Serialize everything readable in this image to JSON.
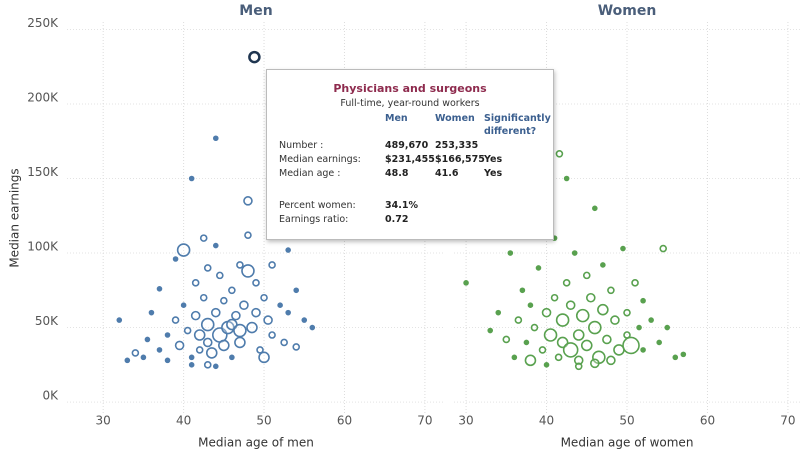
{
  "chart_data": [
    {
      "type": "scatter",
      "title": "Men",
      "x_label": "Median age of men",
      "y_label": "Median earnings",
      "xlim": [
        25.5,
        72.5
      ],
      "ylim": [
        -8000,
        255000
      ],
      "xticks": [
        30,
        40,
        50,
        60,
        70
      ],
      "yticks": [
        {
          "value": 0,
          "label": "0K"
        },
        {
          "value": 50000,
          "label": "50K"
        },
        {
          "value": 100000,
          "label": "100K"
        },
        {
          "value": 150000,
          "label": "150K"
        },
        {
          "value": 200000,
          "label": "200K"
        },
        {
          "value": 250000,
          "label": "250K"
        }
      ],
      "grid": true,
      "series": [
        {
          "color": "#4f7cac",
          "x": [
            32,
            33,
            34,
            35,
            35.5,
            36,
            37,
            37,
            38,
            38,
            39,
            39,
            39.5,
            40,
            40,
            40.5,
            41,
            41,
            41.5,
            41.5,
            42,
            42,
            42.5,
            42.5,
            43,
            43,
            43,
            43.5,
            44,
            44,
            44,
            44.5,
            44.5,
            45,
            45,
            45.5,
            46,
            46,
            46.5,
            47,
            47,
            47.5,
            48,
            48,
            48,
            48.5,
            49,
            49,
            49.5,
            50,
            50,
            50.5,
            51,
            51,
            52,
            52.5,
            53,
            53,
            54,
            54,
            55,
            56,
            44,
            43,
            41,
            46,
            47
          ],
          "values": [
            55000,
            28000,
            33000,
            30000,
            42000,
            60000,
            35000,
            76000,
            45000,
            28000,
            96000,
            55000,
            38000,
            102000,
            65000,
            48000,
            150000,
            30000,
            80000,
            58000,
            45000,
            35000,
            70000,
            110000,
            52000,
            90000,
            40000,
            33000,
            177000,
            60000,
            105000,
            45000,
            85000,
            38000,
            68000,
            50000,
            75000,
            30000,
            58000,
            92000,
            40000,
            65000,
            88000,
            112000,
            135000,
            50000,
            80000,
            60000,
            35000,
            30000,
            70000,
            55000,
            45000,
            92000,
            65000,
            40000,
            102000,
            60000,
            37000,
            75000,
            55000,
            50000,
            24000,
            25000,
            25000,
            52000,
            48000
          ],
          "sizes": [
            2,
            2,
            3,
            2,
            2,
            2,
            2,
            2,
            2,
            2,
            2,
            3,
            4,
            6,
            2,
            3,
            2,
            2,
            3,
            4,
            5,
            3,
            3,
            3,
            6,
            3,
            4,
            5,
            2,
            4,
            2,
            7,
            3,
            5,
            3,
            6,
            3,
            2,
            4,
            3,
            5,
            4,
            6,
            3,
            4,
            5,
            3,
            4,
            3,
            5,
            3,
            4,
            3,
            3,
            2,
            3,
            2,
            2,
            3,
            2,
            2,
            2,
            2,
            3,
            2,
            5,
            6
          ]
        },
        {
          "color": "#1f3550",
          "x": [
            48.8
          ],
          "values": [
            231455
          ],
          "sizes": [
            5
          ]
        }
      ]
    },
    {
      "type": "scatter",
      "title": "Women",
      "x_label": "Median age of women",
      "xlim": [
        28.5,
        71.5
      ],
      "ylim": [
        -8000,
        255000
      ],
      "xticks": [
        30,
        40,
        50,
        60,
        70
      ],
      "yticks": [
        0,
        50000,
        100000,
        150000,
        200000,
        250000
      ],
      "grid": true,
      "series": [
        {
          "color": "#59a14f",
          "x": [
            30,
            33,
            34,
            35,
            35.5,
            36,
            36.5,
            37,
            37.5,
            38,
            38,
            38.5,
            39,
            39.5,
            40,
            40,
            40.5,
            41,
            41,
            41.5,
            41.6,
            42,
            42,
            42.5,
            42.5,
            43,
            43,
            43.5,
            44,
            44,
            44.5,
            45,
            45,
            45.5,
            46,
            46,
            46.5,
            47,
            47,
            47.5,
            48,
            48,
            48.5,
            49,
            49.5,
            50,
            50,
            50.5,
            51,
            51.5,
            52,
            52,
            53,
            54,
            54.5,
            55,
            56,
            57,
            44,
            46
          ],
          "values": [
            80000,
            48000,
            60000,
            42000,
            100000,
            30000,
            55000,
            75000,
            40000,
            65000,
            28000,
            50000,
            90000,
            35000,
            60000,
            25000,
            45000,
            110000,
            70000,
            30000,
            166575,
            40000,
            55000,
            150000,
            80000,
            35000,
            65000,
            100000,
            45000,
            28000,
            58000,
            85000,
            38000,
            70000,
            50000,
            130000,
            30000,
            62000,
            92000,
            42000,
            75000,
            28000,
            55000,
            35000,
            103000,
            45000,
            60000,
            38000,
            80000,
            50000,
            35000,
            68000,
            55000,
            40000,
            103000,
            50000,
            30000,
            32000,
            24000,
            26000
          ],
          "sizes": [
            2,
            2,
            2,
            3,
            2,
            2,
            3,
            2,
            2,
            2,
            5,
            3,
            2,
            3,
            4,
            2,
            6,
            2,
            3,
            3,
            3,
            5,
            6,
            2,
            3,
            7,
            4,
            2,
            5,
            4,
            6,
            3,
            5,
            4,
            6,
            2,
            6,
            5,
            2,
            4,
            3,
            4,
            4,
            5,
            2,
            3,
            3,
            8,
            3,
            2,
            2,
            2,
            2,
            2,
            3,
            2,
            2,
            2,
            3,
            4
          ]
        }
      ]
    }
  ],
  "tooltip": {
    "title": "Physicians and surgeons",
    "subtitle": "Full-time, year-round workers",
    "headers": [
      "Men",
      "Women",
      "Significantly different?"
    ],
    "rows": [
      [
        "Number :",
        "489,670",
        "253,335"
      ],
      [
        "Median earnings:",
        "$231,455",
        "$166,575",
        "Yes"
      ],
      [
        "Median age :",
        "48.8",
        "41.6",
        "Yes"
      ],
      [
        "Percent women:",
        "34.1%"
      ],
      [
        "Earnings ratio:",
        "0.72"
      ]
    ]
  }
}
